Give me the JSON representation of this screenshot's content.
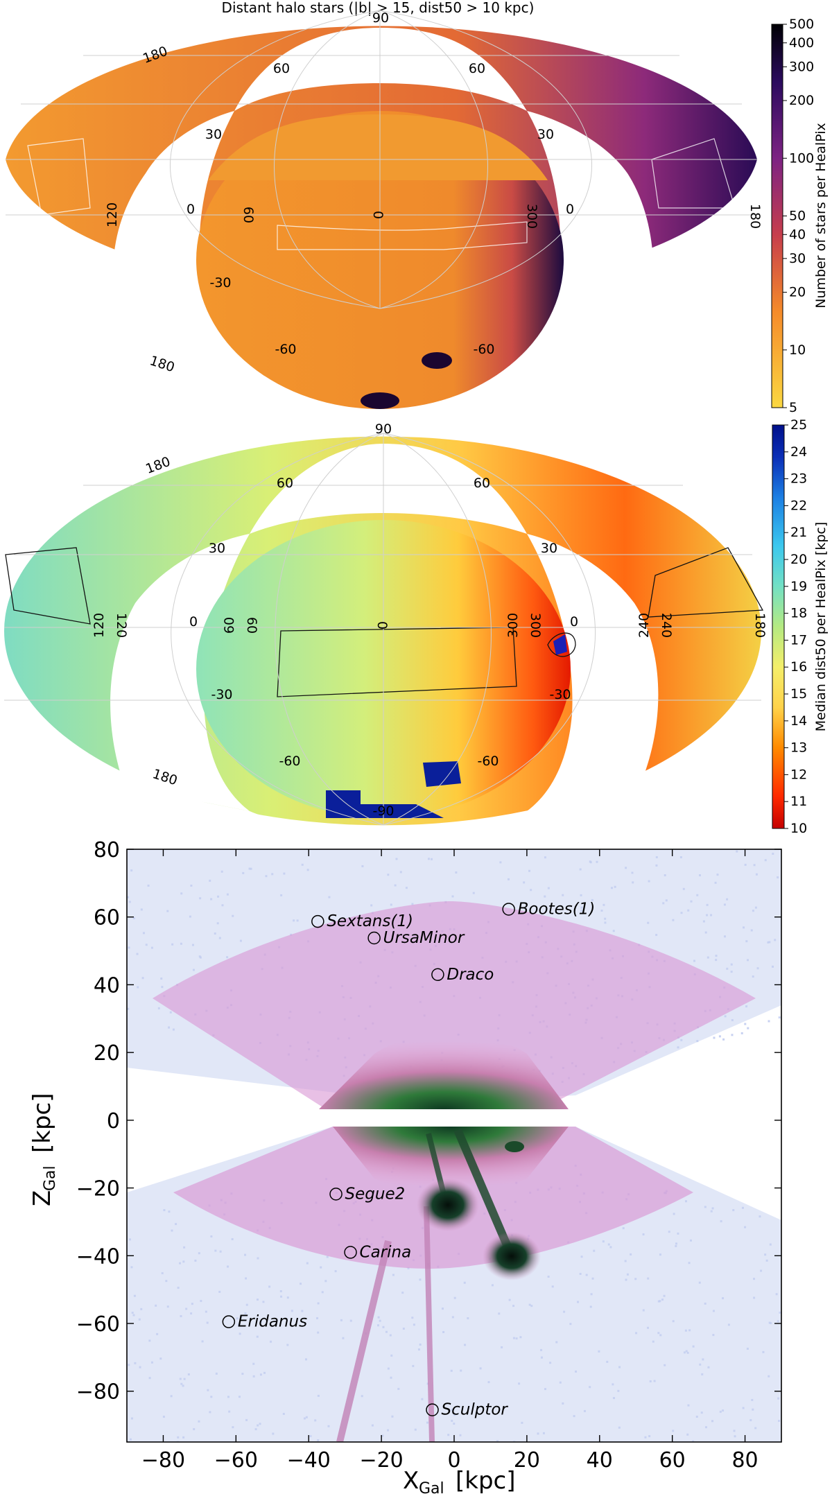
{
  "figure": {
    "title": "Distant halo stars   (|b| > 15,  dist50 > 10 kpc)"
  },
  "chart_data": [
    {
      "type": "heatmap",
      "projection": "aitoff",
      "title": "Distant halo stars   (|b| > 15,  dist50 > 10 kpc)",
      "colorbar": {
        "label": "Number of stars per HealPix",
        "scale": "log",
        "range": [
          5,
          500
        ],
        "ticks": [
          "500",
          "400",
          "300",
          "200",
          "100",
          "50",
          "40",
          "30",
          "20",
          "10",
          "5"
        ],
        "tick_values": [
          500,
          400,
          300,
          200,
          100,
          50,
          40,
          30,
          20,
          10,
          5
        ],
        "colors": [
          "#fbd842",
          "#f58b2a",
          "#c73e4c",
          "#7d2383",
          "#2b0b5e",
          "#000004"
        ]
      },
      "grid_labels": [
        "90",
        "60",
        "60",
        "30",
        "30",
        "0",
        "0",
        "-30",
        "-60",
        "-60",
        "180",
        "180",
        "120",
        "60",
        "0",
        "300",
        "180"
      ]
    },
    {
      "type": "heatmap",
      "projection": "aitoff",
      "title": "",
      "colorbar": {
        "label": "Median dist50 per HealPix   [kpc]",
        "scale": "linear",
        "range": [
          10,
          25
        ],
        "ticks": [
          "25",
          "24",
          "23",
          "22",
          "21",
          "20",
          "19",
          "18",
          "17",
          "16",
          "15",
          "14",
          "13",
          "12",
          "11",
          "10"
        ],
        "tick_values": [
          25,
          24,
          23,
          22,
          21,
          20,
          19,
          18,
          17,
          16,
          15,
          14,
          13,
          12,
          11,
          10
        ],
        "colors": [
          "#c40000",
          "#ff2a00",
          "#ff8a00",
          "#ffd24a",
          "#f4ee6a",
          "#b5ea82",
          "#73e0c4",
          "#3cc8ee",
          "#1c7fe3",
          "#0b2fb7",
          "#00108a"
        ]
      },
      "grid_labels": [
        "90",
        "60",
        "60",
        "30",
        "30",
        "0",
        "0",
        "-30",
        "-30",
        "-60",
        "-60",
        "180",
        "180",
        "120",
        "120",
        "60",
        "60",
        "0",
        "300",
        "300",
        "240",
        "240",
        "180",
        "-90"
      ]
    },
    {
      "type": "scatter",
      "title": "",
      "xlabel": "X",
      "xlabel_sub": "Gal",
      "xlabel_unit": "[kpc]",
      "ylabel": "Z",
      "ylabel_sub": "Gal",
      "ylabel_unit": "[kpc]",
      "xlim": [
        -90,
        90
      ],
      "ylim": [
        -95,
        80
      ],
      "xticks": [
        -80,
        -60,
        -40,
        -20,
        0,
        20,
        40,
        60,
        80
      ],
      "yticks": [
        80,
        60,
        40,
        20,
        0,
        -20,
        -40,
        -60,
        -80
      ],
      "xtick_labels": [
        "−80",
        "−60",
        "−40",
        "−20",
        "0",
        "20",
        "40",
        "60",
        "80"
      ],
      "ytick_labels": [
        "80",
        "60",
        "40",
        "20",
        "0",
        "−20",
        "−40",
        "−60",
        "−80"
      ],
      "galaxies": [
        {
          "name": "Sextans(1)",
          "x": -37.5,
          "z": 58.7
        },
        {
          "name": "Bootes(1)",
          "x": 15.0,
          "z": 62.3
        },
        {
          "name": "UrsaMinor",
          "x": -22.0,
          "z": 53.8
        },
        {
          "name": "Draco",
          "x": -4.5,
          "z": 43.0
        },
        {
          "name": "Segue2",
          "x": -32.5,
          "z": -21.8
        },
        {
          "name": "Carina",
          "x": -28.5,
          "z": -39.0
        },
        {
          "name": "Eridanus",
          "x": -62.0,
          "z": -59.5
        },
        {
          "name": "Sculptor",
          "x": -6.0,
          "z": -85.5
        }
      ]
    }
  ]
}
